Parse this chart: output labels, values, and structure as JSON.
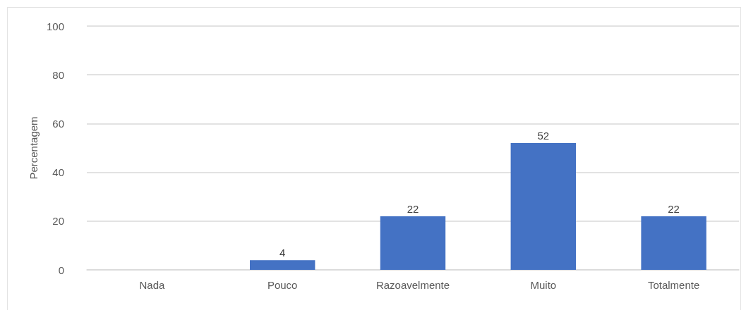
{
  "chart_data": {
    "type": "bar",
    "ylabel": "Percentagem",
    "categories": [
      "Nada",
      "Pouco",
      "Razoavelmente",
      "Muito",
      "Totalmente"
    ],
    "values": [
      null,
      4,
      22,
      52,
      22
    ],
    "color": "#4472c4",
    "ylim": [
      0,
      100
    ],
    "yticks": [
      0,
      20,
      40,
      60,
      80,
      100
    ],
    "grid": "y",
    "data_labels": true
  }
}
